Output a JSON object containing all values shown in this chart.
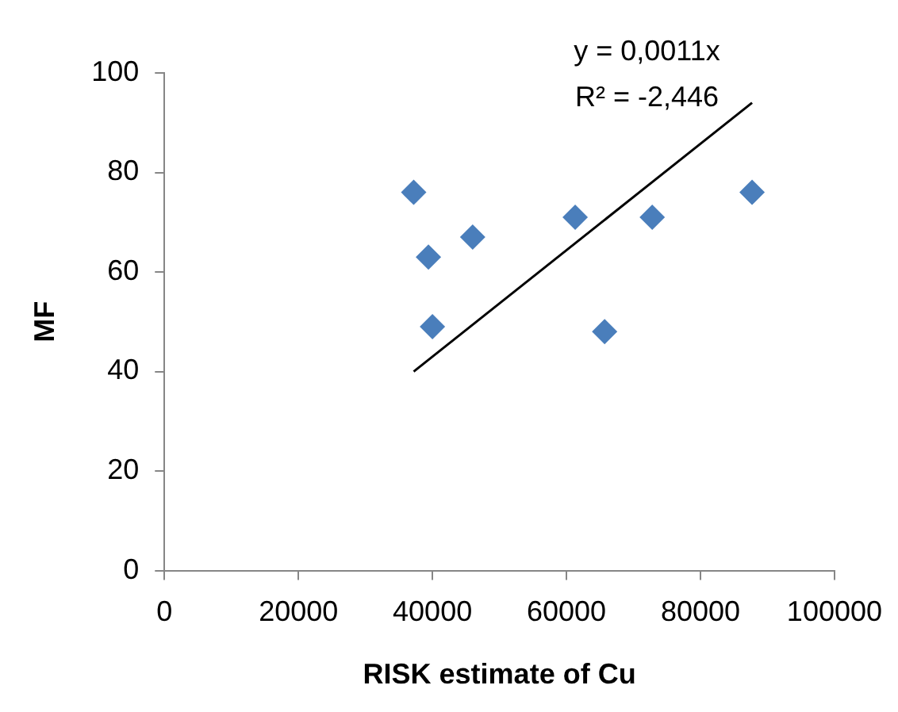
{
  "chart_data": {
    "type": "scatter",
    "xlabel": "RISK estimate of Cu",
    "ylabel": "MF",
    "annotations": [
      "y = 0,0011x",
      "R² = -2,446"
    ],
    "series": [
      {
        "color": "#4a7ebb",
        "marker": "diamond",
        "x": [
          37200,
          39400,
          40000,
          46000,
          61300,
          65700,
          72800,
          87700
        ],
        "values": [
          76,
          63,
          49,
          67,
          71,
          48,
          71,
          76
        ]
      },
      {
        "type": "line",
        "color": "#000000",
        "marker": "none",
        "line_style": "solid",
        "x": [
          37200,
          87700
        ],
        "values": [
          40,
          94
        ]
      }
    ],
    "xlim": [
      0,
      100000
    ],
    "xticks": [
      0,
      20000,
      40000,
      60000,
      80000,
      100000
    ],
    "ylim": [
      0,
      100
    ],
    "yticks": [
      0,
      20,
      40,
      60,
      80,
      100
    ],
    "grid": false,
    "legend": false
  }
}
